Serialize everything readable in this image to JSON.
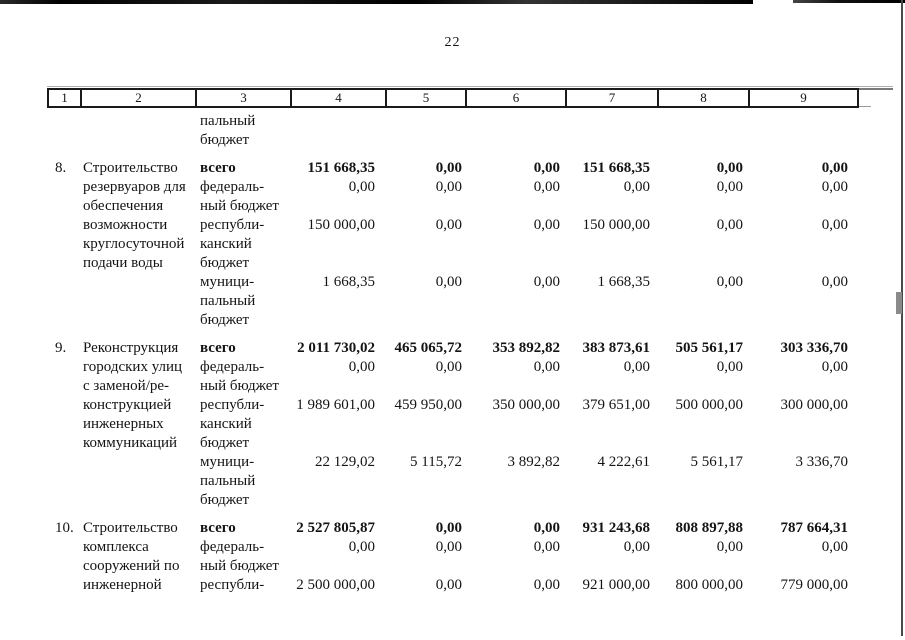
{
  "page": {
    "number": "22"
  },
  "table": {
    "header_cells": [
      "1",
      "2",
      "3",
      "4",
      "5",
      "6",
      "7",
      "8",
      "9"
    ],
    "body_lines": [
      {
        "c3": "пальный"
      },
      {
        "c3": "бюджет"
      },
      {
        "gap": true,
        "bold": true,
        "c1": "8.",
        "c2": "Строительство",
        "c3": "всего",
        "v": [
          "151 668,35",
          "0,00",
          "0,00",
          "151 668,35",
          "0,00",
          "0,00"
        ]
      },
      {
        "c2": "резервуаров для",
        "c3": "федераль-",
        "v": [
          "0,00",
          "0,00",
          "0,00",
          "0,00",
          "0,00",
          "0,00"
        ]
      },
      {
        "c2": "обеспечения",
        "c3": "ный бюджет"
      },
      {
        "c2": "возможности",
        "c3": "республи-",
        "v": [
          "150 000,00",
          "0,00",
          "0,00",
          "150 000,00",
          "0,00",
          "0,00"
        ]
      },
      {
        "c2": "круглосуточной",
        "c3": "канский"
      },
      {
        "c2": "подачи воды",
        "c3": "бюджет"
      },
      {
        "c3": "муници-",
        "v": [
          "1 668,35",
          "0,00",
          "0,00",
          "1 668,35",
          "0,00",
          "0,00"
        ]
      },
      {
        "c3": "пальный"
      },
      {
        "c3": "бюджет"
      },
      {
        "gap": true,
        "bold": true,
        "c1": "9.",
        "c2": "Реконструкция",
        "c3": "всего",
        "v": [
          "2 011 730,02",
          "465 065,72",
          "353 892,82",
          "383 873,61",
          "505 561,17",
          "303 336,70"
        ]
      },
      {
        "c2": "городских улиц",
        "c3": "федераль-",
        "v": [
          "0,00",
          "0,00",
          "0,00",
          "0,00",
          "0,00",
          "0,00"
        ]
      },
      {
        "c2": "с заменой/ре-",
        "c3": "ный бюджет"
      },
      {
        "c2": "конструкцией",
        "c3": "республи-",
        "v": [
          "1 989 601,00",
          "459 950,00",
          "350 000,00",
          "379 651,00",
          "500 000,00",
          "300 000,00"
        ]
      },
      {
        "c2": "инженерных",
        "c3": "канский"
      },
      {
        "c2": "коммуникаций",
        "c3": "бюджет"
      },
      {
        "c3": "муници-",
        "v": [
          "22 129,02",
          "5 115,72",
          "3 892,82",
          "4 222,61",
          "5 561,17",
          "3 336,70"
        ]
      },
      {
        "c3": "пальный"
      },
      {
        "c3": "бюджет"
      },
      {
        "gap": true,
        "bold": true,
        "c1": "10.",
        "c2": "Строительство",
        "c3": "всего",
        "v": [
          "2 527 805,87",
          "0,00",
          "0,00",
          "931 243,68",
          "808 897,88",
          "787 664,31"
        ]
      },
      {
        "c2": "комплекса",
        "c3": "федераль-",
        "v": [
          "0,00",
          "0,00",
          "0,00",
          "0,00",
          "0,00",
          "0,00"
        ]
      },
      {
        "c2": "сооружений по",
        "c3": "ный бюджет"
      },
      {
        "c2": "инженерной",
        "c3": "республи-",
        "v": [
          "2 500 000,00",
          "0,00",
          "0,00",
          "921 000,00",
          "800 000,00",
          "779 000,00"
        ]
      }
    ]
  }
}
